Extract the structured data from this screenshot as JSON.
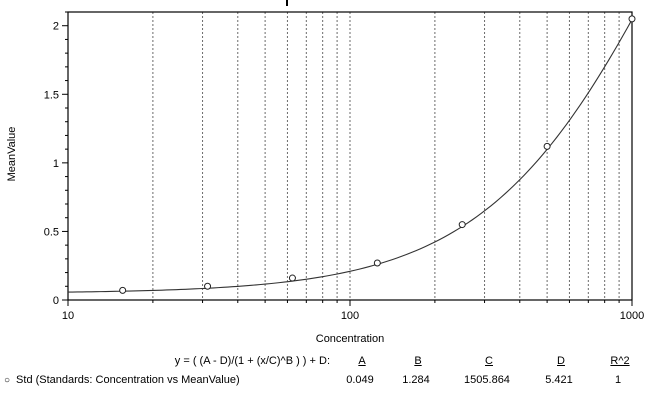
{
  "chart_data": {
    "type": "scatter",
    "title": "",
    "xlabel": "Concentration",
    "ylabel": "MeanValue",
    "x_scale": "log",
    "xlim": [
      10,
      1000
    ],
    "ylim": [
      0,
      2.1
    ],
    "x_ticks": [
      10,
      100,
      1000
    ],
    "x_tick_labels": [
      "10",
      "100",
      "1000"
    ],
    "y_major_ticks": [
      0,
      0.5,
      1,
      1.5,
      2
    ],
    "y_tick_labels": [
      "0",
      "0.5",
      "1",
      "1.5",
      "2"
    ],
    "y_minor_step": 0.1,
    "grid": "vertical-dashed",
    "legend_position": "bottom-left",
    "points": {
      "x": [
        15.625,
        31.25,
        62.5,
        125,
        250,
        500,
        1000
      ],
      "y": [
        0.07,
        0.1,
        0.16,
        0.27,
        0.55,
        1.12,
        2.05
      ]
    },
    "fit": {
      "type": "4PL",
      "A": 0.049,
      "B": 1.284,
      "C": 1505.864,
      "D": 5.421,
      "R2": 1
    }
  },
  "equation": {
    "formula": "y = ( (A - D)/(1 + (x/C)^B ) ) + D:",
    "headers": [
      "A",
      "B",
      "C",
      "D",
      "R^2"
    ],
    "values": [
      "0.049",
      "1.284",
      "1505.864",
      "5.421",
      "1"
    ]
  },
  "legend": {
    "marker": "○",
    "label": "Std (Standards: Concentration vs MeanValue)"
  }
}
